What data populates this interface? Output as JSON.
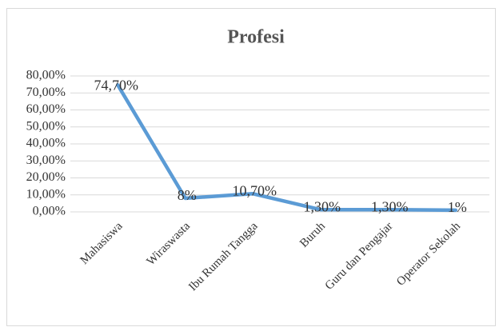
{
  "chart_data": {
    "type": "line",
    "title": "Profesi",
    "categories": [
      "Mahasiswa",
      "Wiraswasta",
      "Ibu Rumah Tangga",
      "Buruh",
      "Guru dan Pengajar",
      "Operator Sekolah"
    ],
    "values": [
      74.7,
      8,
      10.7,
      1.3,
      1.3,
      1
    ],
    "value_labels": [
      "74,70%",
      "8%",
      "10,70%",
      "1,30%",
      "1,30%",
      "1%"
    ],
    "color": "#5b9bd5",
    "ylim": [
      0,
      80
    ],
    "yticks": [
      {
        "value": 0,
        "label": "0,00%"
      },
      {
        "value": 10,
        "label": "10,00%"
      },
      {
        "value": 20,
        "label": "20,00%"
      },
      {
        "value": 30,
        "label": "30,00%"
      },
      {
        "value": 40,
        "label": "40,00%"
      },
      {
        "value": 50,
        "label": "50,00%"
      },
      {
        "value": 60,
        "label": "60,00%"
      },
      {
        "value": 70,
        "label": "70,00%"
      },
      {
        "value": 80,
        "label": "80,00%"
      }
    ],
    "grid": true
  }
}
